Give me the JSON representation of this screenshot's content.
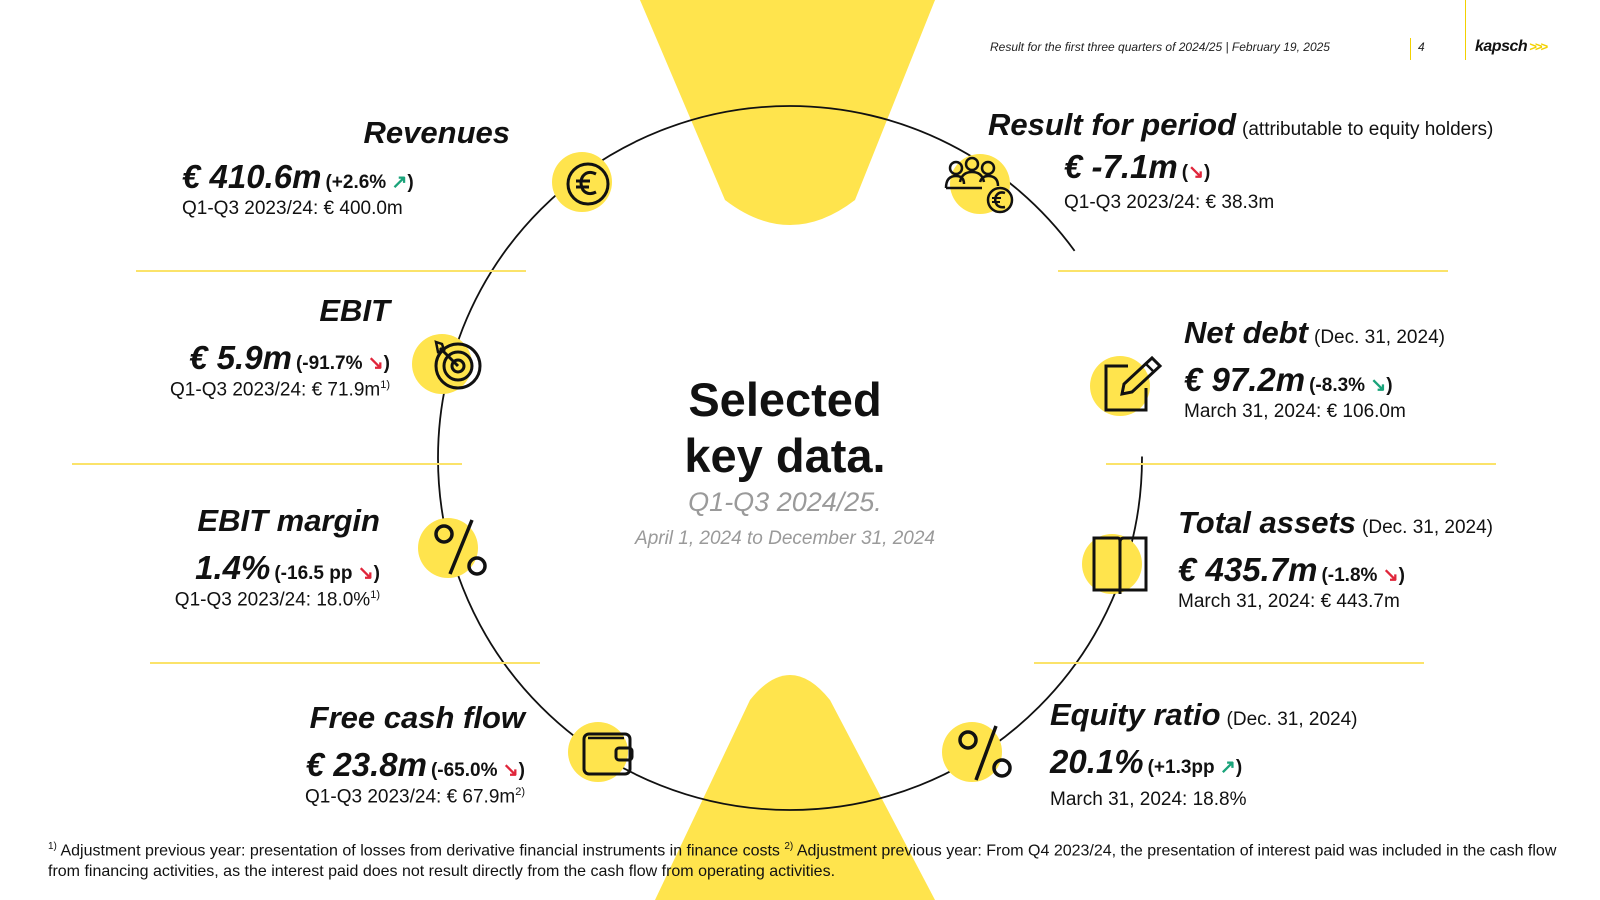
{
  "header": {
    "text": "Result for the first three quarters of 2024/25 | February 19, 2025",
    "page_number": "4",
    "logo_text": "kapsch",
    "logo_arrows": ">>>"
  },
  "center": {
    "title_line1": "Selected",
    "title_line2": "key data.",
    "period": "Q1-Q3 2024/25.",
    "dates": "April 1, 2024 to December 31, 2024"
  },
  "kpis": {
    "revenues": {
      "title": "Revenues",
      "value": "€ 410.6m",
      "change": "(+2.6% ",
      "arrow": "↗",
      "change_close": ")",
      "comparison": "Q1-Q3 2023/24: € 400.0m",
      "icon": "euro-coin-icon"
    },
    "ebit": {
      "title": "EBIT",
      "value": "€ 5.9m",
      "change": "(-91.7% ",
      "arrow": "↘",
      "change_close": ")",
      "comparison": "Q1-Q3 2023/24: € 71.9m",
      "footnote_ref": "1)",
      "icon": "target-icon"
    },
    "ebit_margin": {
      "title": "EBIT margin",
      "value": "1.4%",
      "change": "(-16.5 pp ",
      "arrow": "↘",
      "change_close": ")",
      "comparison": "Q1-Q3 2023/24: 18.0%",
      "footnote_ref": "1)",
      "icon": "percent-icon"
    },
    "free_cash_flow": {
      "title": "Free cash flow",
      "value": "€ 23.8m",
      "change": "(-65.0% ",
      "arrow": "↘",
      "change_close": ")",
      "comparison": "Q1-Q3 2023/24: € 67.9m",
      "footnote_ref": "2)",
      "icon": "wallet-icon"
    },
    "result_period": {
      "title": "Result for period",
      "title_note": "(attributable to equity holders)",
      "value": "€ -7.1m",
      "change": "(",
      "arrow": "↘",
      "change_close": ")",
      "comparison": "Q1-Q3 2023/24: € 38.3m",
      "icon": "people-euro-icon"
    },
    "net_debt": {
      "title": "Net debt",
      "title_note": "(Dec. 31, 2024)",
      "value": "€ 97.2m",
      "change": "(-8.3% ",
      "arrow": "↘",
      "change_close": ")",
      "comparison": "March 31, 2024: € 106.0m",
      "icon": "edit-icon"
    },
    "total_assets": {
      "title": "Total assets",
      "title_note": "(Dec. 31, 2024)",
      "value": "€ 435.7m",
      "change": "(-1.8% ",
      "arrow": "↘",
      "change_close": ")",
      "comparison": "March 31, 2024: € 443.7m",
      "icon": "book-icon"
    },
    "equity_ratio": {
      "title": "Equity ratio",
      "title_note": "(Dec. 31, 2024)",
      "value": "20.1%",
      "change": "(+1.3pp ",
      "arrow": "↗",
      "change_close": ")",
      "comparison": "March 31, 2024: 18.8%",
      "icon": "percent-icon"
    }
  },
  "footnotes": {
    "ref1": "1)",
    "text1": " Adjustment previous year: presentation of losses from derivative financial instruments in finance costs ",
    "ref2": "2)",
    "text2": " Adjustment previous year: From Q4 2023/24, the presentation of interest paid was included in the cash flow from financing activities, as the interest paid does not result directly from the cash flow from operating activities."
  },
  "colors": {
    "accent_yellow": "#ffe44d",
    "up": "#1aa37a",
    "down": "#e0263b",
    "muted": "#9a9a9a"
  }
}
